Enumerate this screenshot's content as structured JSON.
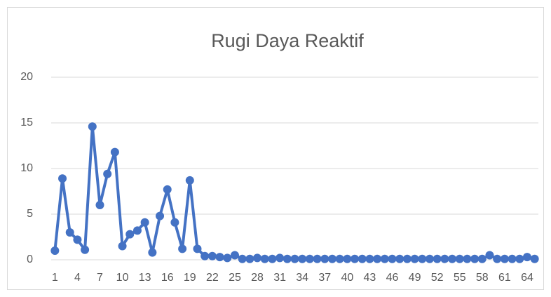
{
  "chart_data": {
    "type": "line",
    "title": "Rugi Daya Reaktif",
    "categories": [
      1,
      null,
      null,
      4,
      null,
      null,
      7,
      null,
      null,
      10,
      null,
      null,
      13,
      null,
      null,
      16,
      null,
      null,
      19,
      null,
      null,
      22,
      null,
      null,
      25,
      null,
      null,
      28,
      null,
      null,
      31,
      null,
      null,
      34,
      null,
      null,
      37,
      null,
      null,
      40,
      null,
      null,
      43,
      null,
      null,
      46,
      null,
      null,
      49,
      null,
      null,
      52,
      null,
      null,
      55,
      null,
      null,
      58,
      null,
      null,
      61,
      null,
      null,
      64,
      null
    ],
    "series": [
      {
        "name": "Rugi Daya Reaktif",
        "color": "#4472c4",
        "values": [
          1.0,
          8.9,
          3.0,
          2.2,
          1.1,
          14.6,
          6.0,
          9.4,
          11.8,
          1.5,
          2.8,
          3.2,
          4.1,
          0.8,
          4.8,
          7.7,
          4.1,
          1.2,
          8.7,
          1.2,
          0.4,
          0.4,
          0.3,
          0.2,
          0.5,
          0.1,
          0.1,
          0.2,
          0.1,
          0.1,
          0.2,
          0.1,
          0.1,
          0.1,
          0.1,
          0.1,
          0.1,
          0.1,
          0.1,
          0.1,
          0.1,
          0.1,
          0.1,
          0.1,
          0.1,
          0.1,
          0.1,
          0.1,
          0.1,
          0.1,
          0.1,
          0.1,
          0.1,
          0.1,
          0.1,
          0.1,
          0.1,
          0.1,
          0.5,
          0.1,
          0.1,
          0.1,
          0.1,
          0.3,
          0.1
        ]
      }
    ],
    "ylim": [
      0,
      20
    ],
    "yticks": [
      0,
      5,
      10,
      15,
      20
    ],
    "grid": true
  }
}
